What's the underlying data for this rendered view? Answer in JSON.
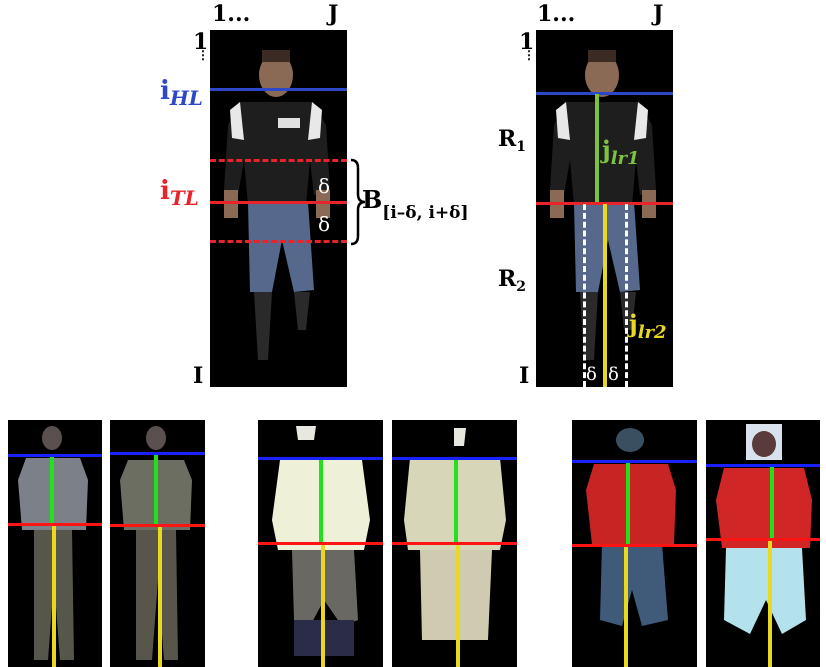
{
  "colors": {
    "head_line": "#2c48c8",
    "torso_line": "#e8242b",
    "torso_axis": "#7fc241",
    "leg_axis": "#e8d820",
    "bright_green": "#22e01c",
    "bright_blue": "#1822ff",
    "bright_red": "#ff1414"
  },
  "labels": {
    "col_start": "1...",
    "col_end": "J",
    "row_start": "1",
    "row_end": "I",
    "head_line_base": "i",
    "head_line_sub": "HL",
    "torso_line_base": "i",
    "torso_line_sub": "TL",
    "delta": "δ",
    "band_base": "B",
    "band_sub": "[i–δ, i+δ]",
    "region1_base": "R",
    "region1_sub": "1",
    "region2_base": "R",
    "region2_sub": "2",
    "axis1_base": "j",
    "axis1_sub": "lr1",
    "axis2_base": "j",
    "axis2_sub": "lr2"
  }
}
